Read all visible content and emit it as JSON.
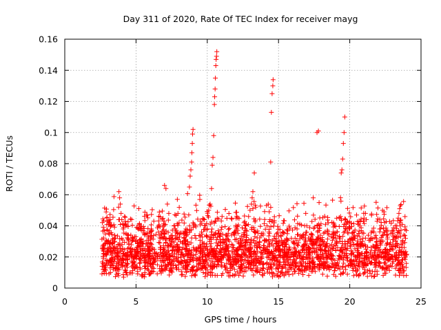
{
  "chart_data": {
    "type": "scatter",
    "title": "Day 311 of 2020, Rate Of TEC Index for receiver mayg",
    "xlabel": "GPS time / hours",
    "ylabel": "ROTI / TECUs",
    "xlim": [
      0,
      25
    ],
    "ylim": [
      0,
      0.16
    ],
    "xticks": [
      0,
      5,
      10,
      15,
      20,
      25
    ],
    "xtick_labels": [
      "0",
      "5",
      "10",
      "15",
      "20",
      "25"
    ],
    "yticks": [
      0,
      0.02,
      0.04,
      0.06,
      0.08,
      0.1,
      0.12,
      0.14,
      0.16
    ],
    "ytick_labels": [
      "0",
      "0.02",
      "0.04",
      "0.06",
      "0.08",
      "0.1",
      "0.12",
      "0.14",
      "0.16"
    ],
    "grid": true,
    "marker": "+",
    "marker_color": "#ff0000",
    "series": [
      {
        "name": "ROTI",
        "points": [
          [
            2.7,
            0.012
          ],
          [
            2.9,
            0.018
          ],
          [
            3.1,
            0.025
          ],
          [
            3.3,
            0.015
          ],
          [
            3.5,
            0.03
          ],
          [
            3.7,
            0.022
          ],
          [
            3.8,
            0.062
          ],
          [
            3.85,
            0.058
          ],
          [
            3.9,
            0.054
          ],
          [
            3.95,
            0.048
          ],
          [
            4.0,
            0.044
          ],
          [
            4.1,
            0.038
          ],
          [
            4.2,
            0.046
          ],
          [
            4.3,
            0.035
          ],
          [
            4.5,
            0.028
          ],
          [
            4.7,
            0.02
          ],
          [
            4.9,
            0.033
          ],
          [
            5.1,
            0.025
          ],
          [
            5.3,
            0.038
          ],
          [
            5.5,
            0.03
          ],
          [
            5.7,
            0.018
          ],
          [
            5.9,
            0.027
          ],
          [
            6.1,
            0.037
          ],
          [
            6.3,
            0.022
          ],
          [
            6.5,
            0.015
          ],
          [
            6.7,
            0.025
          ],
          [
            6.9,
            0.032
          ],
          [
            7.0,
            0.066
          ],
          [
            7.1,
            0.064
          ],
          [
            7.2,
            0.054
          ],
          [
            7.3,
            0.048
          ],
          [
            7.5,
            0.03
          ],
          [
            7.7,
            0.022
          ],
          [
            7.9,
            0.057
          ],
          [
            8.1,
            0.03
          ],
          [
            8.3,
            0.026
          ],
          [
            8.5,
            0.038
          ],
          [
            8.7,
            0.047
          ],
          [
            8.75,
            0.065
          ],
          [
            8.8,
            0.072
          ],
          [
            8.85,
            0.076
          ],
          [
            8.9,
            0.081
          ],
          [
            8.92,
            0.087
          ],
          [
            8.95,
            0.093
          ],
          [
            8.97,
            0.099
          ],
          [
            9.0,
            0.102
          ],
          [
            9.0,
            0.042
          ],
          [
            9.2,
            0.032
          ],
          [
            9.4,
            0.026
          ],
          [
            9.6,
            0.036
          ],
          [
            9.8,
            0.044
          ],
          [
            10.0,
            0.038
          ],
          [
            10.1,
            0.05
          ],
          [
            10.2,
            0.054
          ],
          [
            10.3,
            0.064
          ],
          [
            10.35,
            0.079
          ],
          [
            10.4,
            0.084
          ],
          [
            10.45,
            0.098
          ],
          [
            10.5,
            0.118
          ],
          [
            10.52,
            0.123
          ],
          [
            10.55,
            0.128
          ],
          [
            10.57,
            0.135
          ],
          [
            10.6,
            0.143
          ],
          [
            10.62,
            0.147
          ],
          [
            10.65,
            0.149
          ],
          [
            10.67,
            0.152
          ],
          [
            10.7,
            0.045
          ],
          [
            10.9,
            0.03
          ],
          [
            11.1,
            0.025
          ],
          [
            11.3,
            0.034
          ],
          [
            11.5,
            0.02
          ],
          [
            11.7,
            0.028
          ],
          [
            11.9,
            0.036
          ],
          [
            12.1,
            0.024
          ],
          [
            12.3,
            0.032
          ],
          [
            12.5,
            0.027
          ],
          [
            12.7,
            0.04
          ],
          [
            12.9,
            0.046
          ],
          [
            13.0,
            0.05
          ],
          [
            13.1,
            0.054
          ],
          [
            13.15,
            0.058
          ],
          [
            13.2,
            0.062
          ],
          [
            13.3,
            0.074
          ],
          [
            13.4,
            0.052
          ],
          [
            13.6,
            0.028
          ],
          [
            13.8,
            0.035
          ],
          [
            14.0,
            0.026
          ],
          [
            14.2,
            0.04
          ],
          [
            14.4,
            0.044
          ],
          [
            14.45,
            0.081
          ],
          [
            14.5,
            0.113
          ],
          [
            14.55,
            0.125
          ],
          [
            14.6,
            0.13
          ],
          [
            14.62,
            0.134
          ],
          [
            14.7,
            0.042
          ],
          [
            14.9,
            0.03
          ],
          [
            15.1,
            0.024
          ],
          [
            15.3,
            0.036
          ],
          [
            15.5,
            0.028
          ],
          [
            15.7,
            0.02
          ],
          [
            15.9,
            0.032
          ],
          [
            16.1,
            0.026
          ],
          [
            16.3,
            0.038
          ],
          [
            16.5,
            0.022
          ],
          [
            16.7,
            0.034
          ],
          [
            16.9,
            0.03
          ],
          [
            17.1,
            0.025
          ],
          [
            17.3,
            0.035
          ],
          [
            17.5,
            0.028
          ],
          [
            17.7,
            0.1
          ],
          [
            17.8,
            0.101
          ],
          [
            17.9,
            0.04
          ],
          [
            18.1,
            0.03
          ],
          [
            18.3,
            0.041
          ],
          [
            18.5,
            0.024
          ],
          [
            18.7,
            0.033
          ],
          [
            18.9,
            0.027
          ],
          [
            19.1,
            0.036
          ],
          [
            19.3,
            0.03
          ],
          [
            19.4,
            0.074
          ],
          [
            19.45,
            0.076
          ],
          [
            19.5,
            0.083
          ],
          [
            19.55,
            0.093
          ],
          [
            19.6,
            0.1
          ],
          [
            19.65,
            0.11
          ],
          [
            19.7,
            0.044
          ],
          [
            19.9,
            0.03
          ],
          [
            20.1,
            0.024
          ],
          [
            20.3,
            0.036
          ],
          [
            20.5,
            0.028
          ],
          [
            20.7,
            0.04
          ],
          [
            20.9,
            0.03
          ],
          [
            21.0,
            0.045
          ],
          [
            21.1,
            0.048
          ],
          [
            21.3,
            0.034
          ],
          [
            21.5,
            0.026
          ],
          [
            21.7,
            0.036
          ],
          [
            21.9,
            0.03
          ],
          [
            22.1,
            0.038
          ],
          [
            22.3,
            0.05
          ],
          [
            22.4,
            0.049
          ],
          [
            22.6,
            0.034
          ],
          [
            22.8,
            0.028
          ],
          [
            23.0,
            0.036
          ],
          [
            23.2,
            0.032
          ],
          [
            23.3,
            0.04
          ],
          [
            23.4,
            0.045
          ],
          [
            23.45,
            0.048
          ],
          [
            23.5,
            0.051
          ],
          [
            23.55,
            0.053
          ],
          [
            23.7,
            0.03
          ],
          [
            23.9,
            0.02
          ]
        ]
      }
    ],
    "dense_band": {
      "x_range": [
        2.6,
        24.0
      ],
      "y_floor": 0.004,
      "y_base_range": [
        0.007,
        0.024
      ],
      "y_spread_range": [
        0.018,
        0.04
      ]
    }
  }
}
